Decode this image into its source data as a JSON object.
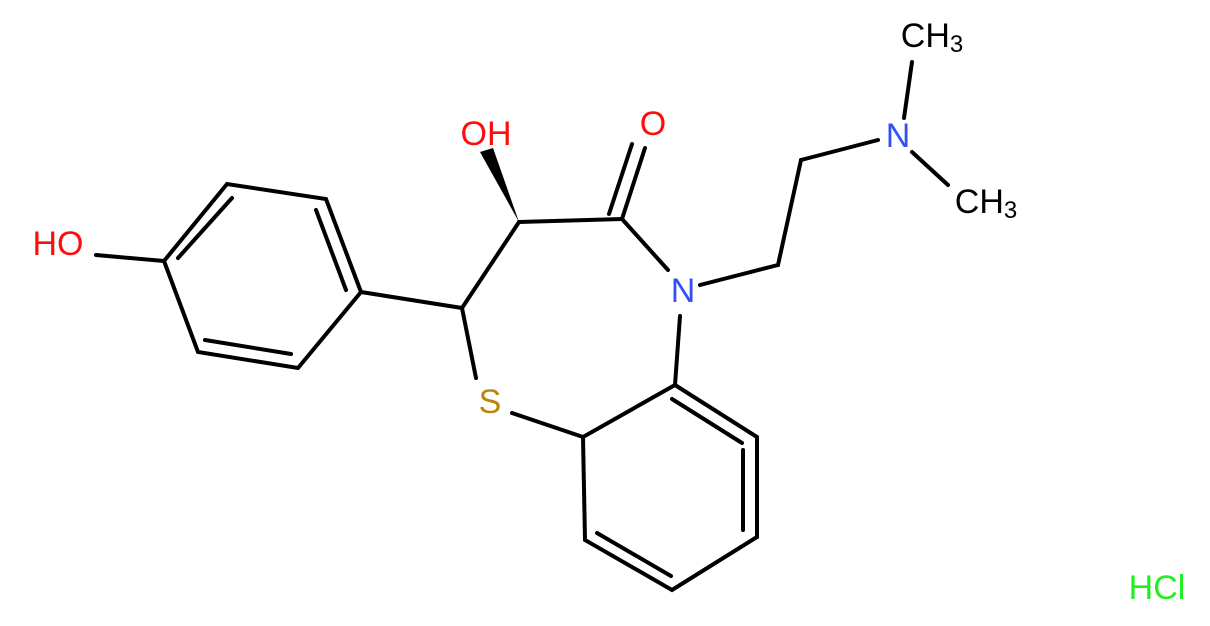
{
  "atoms": [
    {
      "label": "HO"
    },
    {
      "label": "OH"
    },
    {
      "label": "O"
    },
    {
      "label": "N"
    },
    {
      "label": "S"
    },
    {
      "label": "N"
    },
    {
      "label": "CH",
      "subscript": "3"
    },
    {
      "label": "CH",
      "subscript": "3"
    }
  ],
  "salt": "HCl"
}
